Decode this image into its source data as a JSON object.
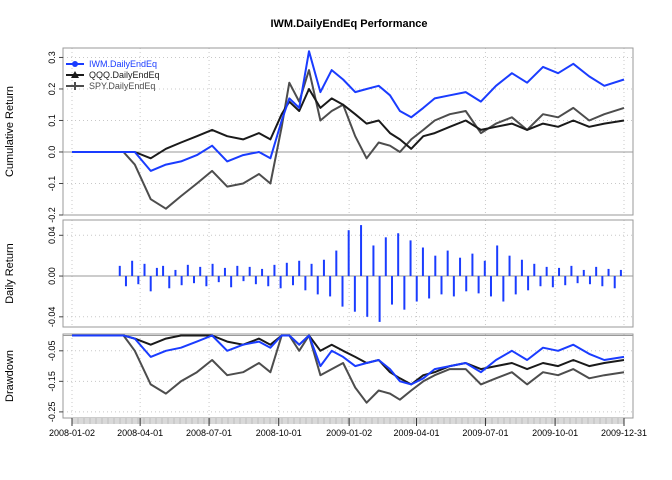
{
  "chart_data": {
    "type": "line",
    "title": "IWM.DailyEndEq Performance",
    "x_range": [
      "2008-01-02",
      "2009-12-31"
    ],
    "x_tick_labels": [
      "2008-01-02",
      "2008-04-01",
      "2008-07-01",
      "2008-10-01",
      "2009-01-02",
      "2009-04-01",
      "2009-07-01",
      "2009-10-01",
      "2009-12-31"
    ],
    "legend_placement": "top-left",
    "grid": true,
    "series_colors": {
      "IWM.DailyEndEq": "#1a3cff",
      "QQQ.DailyEndEq": "#1a1a1a",
      "SPY.DailyEndEq": "#4d4d4d"
    },
    "panels": [
      {
        "name": "cumulative",
        "ylabel": "Cumulative Return",
        "ylim": [
          -0.2,
          0.33
        ],
        "y_ticks": [
          -0.2,
          -0.1,
          0.0,
          0.1,
          0.2,
          0.3
        ],
        "y_tick_labels": [
          "-0.2",
          "-0.1",
          "0.0",
          "0.1",
          "0.2",
          "0.3"
        ],
        "x": [
          "2008-01-02",
          "2008-03-10",
          "2008-03-25",
          "2008-04-15",
          "2008-05-05",
          "2008-05-25",
          "2008-06-15",
          "2008-07-05",
          "2008-07-25",
          "2008-08-15",
          "2008-09-05",
          "2008-09-20",
          "2008-10-05",
          "2008-10-15",
          "2008-10-28",
          "2008-11-10",
          "2008-11-25",
          "2008-12-10",
          "2008-12-25",
          "2009-01-10",
          "2009-01-25",
          "2009-02-10",
          "2009-02-25",
          "2009-03-10",
          "2009-03-25",
          "2009-04-10",
          "2009-04-25",
          "2009-05-15",
          "2009-06-05",
          "2009-06-25",
          "2009-07-15",
          "2009-08-05",
          "2009-08-25",
          "2009-09-15",
          "2009-10-05",
          "2009-10-25",
          "2009-11-15",
          "2009-12-05",
          "2009-12-31"
        ],
        "series": [
          {
            "name": "IWM.DailyEndEq",
            "values": [
              0,
              0,
              0.0,
              -0.06,
              -0.04,
              -0.03,
              -0.01,
              0.02,
              -0.03,
              -0.01,
              0.0,
              -0.02,
              0.1,
              0.17,
              0.14,
              0.32,
              0.19,
              0.26,
              0.23,
              0.19,
              0.2,
              0.21,
              0.18,
              0.13,
              0.11,
              0.14,
              0.17,
              0.18,
              0.19,
              0.16,
              0.21,
              0.25,
              0.22,
              0.27,
              0.25,
              0.28,
              0.24,
              0.21,
              0.23
            ]
          },
          {
            "name": "QQQ.DailyEndEq",
            "values": [
              0,
              0,
              0.0,
              -0.02,
              0.01,
              0.03,
              0.05,
              0.07,
              0.05,
              0.04,
              0.06,
              0.04,
              0.12,
              0.16,
              0.13,
              0.2,
              0.14,
              0.17,
              0.15,
              0.12,
              0.09,
              0.1,
              0.06,
              0.04,
              0.01,
              0.05,
              0.06,
              0.08,
              0.1,
              0.07,
              0.08,
              0.09,
              0.07,
              0.09,
              0.08,
              0.1,
              0.08,
              0.09,
              0.1
            ]
          },
          {
            "name": "SPY.DailyEndEq",
            "values": [
              0,
              0,
              -0.04,
              -0.15,
              -0.18,
              -0.14,
              -0.1,
              -0.06,
              -0.11,
              -0.1,
              -0.07,
              -0.1,
              0.08,
              0.22,
              0.16,
              0.26,
              0.1,
              0.13,
              0.15,
              0.05,
              -0.02,
              0.03,
              0.02,
              0.0,
              0.04,
              0.07,
              0.1,
              0.12,
              0.13,
              0.06,
              0.09,
              0.11,
              0.07,
              0.12,
              0.11,
              0.14,
              0.1,
              0.12,
              0.14
            ]
          }
        ]
      },
      {
        "name": "daily",
        "ylabel": "Daily Return",
        "ylim": [
          -0.05,
          0.055
        ],
        "y_ticks": [
          -0.04,
          0.0,
          0.04
        ],
        "y_tick_labels": [
          "-0.04",
          "0.00",
          "0.04"
        ],
        "series": [
          {
            "name": "IWM.DailyEndEq",
            "start": "2008-03-01",
            "values": [
              0.01,
              -0.01,
              0.015,
              -0.008,
              0.012,
              -0.015,
              0.008,
              0.01,
              -0.012,
              0.006,
              -0.009,
              0.011,
              -0.007,
              0.009,
              -0.01,
              0.012,
              -0.006,
              0.008,
              -0.011,
              0.01,
              -0.005,
              0.009,
              -0.008,
              0.007,
              -0.01,
              0.011,
              -0.012,
              0.013,
              -0.009,
              0.015,
              -0.014,
              0.012,
              -0.018,
              0.016,
              -0.02,
              0.025,
              -0.03,
              0.045,
              -0.035,
              0.05,
              -0.04,
              0.03,
              -0.045,
              0.038,
              -0.028,
              0.042,
              -0.033,
              0.035,
              -0.025,
              0.028,
              -0.022,
              0.02,
              -0.018,
              0.025,
              -0.02,
              0.018,
              -0.015,
              0.022,
              -0.017,
              0.015,
              -0.02,
              0.03,
              -0.025,
              0.02,
              -0.018,
              0.016,
              -0.014,
              0.012,
              -0.01,
              0.009,
              -0.011,
              0.008,
              -0.009,
              0.01,
              -0.007,
              0.006,
              -0.008,
              0.009,
              -0.01,
              0.007,
              -0.012,
              0.006
            ]
          }
        ]
      },
      {
        "name": "drawdown",
        "ylabel": "Drawdown",
        "ylim": [
          -0.27,
          0.005
        ],
        "y_ticks": [
          -0.25,
          -0.15,
          -0.05
        ],
        "y_tick_labels": [
          "-0.25",
          "-0.15",
          "-0.05"
        ],
        "series": [
          {
            "name": "IWM.DailyEndEq",
            "values": [
              0,
              0,
              -0.01,
              -0.07,
              -0.05,
              -0.04,
              -0.02,
              0.0,
              -0.05,
              -0.03,
              -0.02,
              -0.04,
              0.0,
              0.0,
              -0.03,
              0.0,
              -0.1,
              -0.05,
              -0.07,
              -0.1,
              -0.09,
              -0.08,
              -0.11,
              -0.15,
              -0.16,
              -0.14,
              -0.11,
              -0.1,
              -0.09,
              -0.12,
              -0.08,
              -0.05,
              -0.08,
              -0.04,
              -0.05,
              -0.03,
              -0.06,
              -0.08,
              -0.07
            ]
          },
          {
            "name": "QQQ.DailyEndEq",
            "values": [
              0,
              0,
              -0.01,
              -0.03,
              -0.01,
              0.0,
              0.0,
              0.0,
              -0.02,
              -0.03,
              -0.01,
              -0.03,
              0.0,
              0.0,
              -0.03,
              0.0,
              -0.05,
              -0.03,
              -0.05,
              -0.07,
              -0.09,
              -0.08,
              -0.12,
              -0.14,
              -0.16,
              -0.13,
              -0.12,
              -0.1,
              -0.09,
              -0.11,
              -0.1,
              -0.09,
              -0.11,
              -0.09,
              -0.1,
              -0.08,
              -0.1,
              -0.09,
              -0.08
            ]
          },
          {
            "name": "SPY.DailyEndEq",
            "values": [
              0,
              0,
              -0.05,
              -0.16,
              -0.19,
              -0.15,
              -0.12,
              -0.08,
              -0.13,
              -0.12,
              -0.09,
              -0.12,
              0.0,
              0.0,
              -0.05,
              0.0,
              -0.13,
              -0.11,
              -0.09,
              -0.17,
              -0.22,
              -0.18,
              -0.19,
              -0.21,
              -0.18,
              -0.15,
              -0.13,
              -0.11,
              -0.11,
              -0.16,
              -0.14,
              -0.12,
              -0.16,
              -0.12,
              -0.13,
              -0.11,
              -0.14,
              -0.13,
              -0.12
            ]
          }
        ]
      }
    ]
  }
}
